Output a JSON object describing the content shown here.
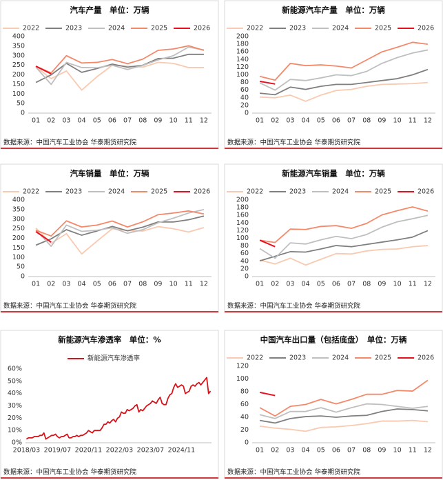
{
  "chart_data": [
    {
      "type": "line",
      "title": "汽车产量　单位：万辆",
      "source": "数据来源：中国汽车工业协会 华泰期货研究院",
      "categories": [
        "01",
        "02",
        "03",
        "04",
        "05",
        "06",
        "07",
        "08",
        "09",
        "10",
        "11",
        "12"
      ],
      "ylim": [
        0,
        400
      ],
      "yticks": [
        0,
        50,
        100,
        150,
        200,
        250,
        300,
        350,
        400
      ],
      "grid": false,
      "legend": "top",
      "series": [
        {
          "name": "2022",
          "color": "#f9c9b0",
          "values": [
            242,
            180,
            220,
            120,
            190,
            250,
            245,
            240,
            265,
            260,
            238,
            238
          ]
        },
        {
          "name": "2023",
          "color": "#7f7f7f",
          "values": [
            160,
            200,
            260,
            213,
            233,
            256,
            240,
            250,
            285,
            287,
            307,
            307
          ]
        },
        {
          "name": "2024",
          "color": "#bfbfbf",
          "values": [
            240,
            150,
            265,
            238,
            237,
            250,
            228,
            249,
            278,
            300,
            345,
            330
          ]
        },
        {
          "name": "2025",
          "color": "#f4896a",
          "values": [
            245,
            210,
            300,
            262,
            265,
            280,
            258,
            282,
            328,
            335,
            352,
            328
          ]
        },
        {
          "name": "2026",
          "color": "#e8101e",
          "values": [
            245,
            205,
            null,
            null,
            null,
            null,
            null,
            null,
            null,
            null,
            null,
            null
          ]
        }
      ]
    },
    {
      "type": "line",
      "title": "新能源汽车产量　单位：万辆",
      "source": "数据来源：中国汽车工业协会 华泰期货研究院",
      "categories": [
        "01",
        "02",
        "03",
        "04",
        "05",
        "06",
        "07",
        "08",
        "09",
        "10",
        "11",
        "12"
      ],
      "ylim": [
        0,
        200
      ],
      "yticks": [
        0,
        20,
        40,
        60,
        80,
        100,
        120,
        140,
        160,
        180,
        200
      ],
      "grid": false,
      "legend": "top",
      "series": [
        {
          "name": "2022",
          "color": "#f9c9b0",
          "values": [
            42,
            40,
            47,
            31,
            47,
            59,
            62,
            70,
            75,
            76,
            77,
            80
          ]
        },
        {
          "name": "2023",
          "color": "#7f7f7f",
          "values": [
            52,
            48,
            68,
            62,
            70,
            75,
            75,
            80,
            85,
            90,
            100,
            114
          ]
        },
        {
          "name": "2024",
          "color": "#bfbfbf",
          "values": [
            79,
            60,
            88,
            85,
            92,
            100,
            98,
            109,
            130,
            145,
            157,
            165
          ]
        },
        {
          "name": "2025",
          "color": "#f4896a",
          "values": [
            96,
            86,
            130,
            124,
            126,
            123,
            118,
            139,
            160,
            172,
            185,
            180
          ]
        },
        {
          "name": "2026",
          "color": "#e8101e",
          "values": [
            83,
            76,
            null,
            null,
            null,
            null,
            null,
            null,
            null,
            null,
            null,
            null
          ]
        }
      ]
    },
    {
      "type": "line",
      "title": "汽车销量　单位：万辆",
      "source": "数据来源：中国汽车工业协会 华泰期货研究院",
      "categories": [
        "01",
        "02",
        "03",
        "04",
        "05",
        "06",
        "07",
        "08",
        "09",
        "10",
        "11",
        "12"
      ],
      "ylim": [
        0,
        400
      ],
      "yticks": [
        0,
        50,
        100,
        150,
        200,
        250,
        300,
        350,
        400
      ],
      "grid": false,
      "legend": "top",
      "series": [
        {
          "name": "2022",
          "color": "#f9c9b0",
          "values": [
            253,
            174,
            224,
            118,
            185,
            250,
            240,
            238,
            261,
            250,
            233,
            256
          ]
        },
        {
          "name": "2023",
          "color": "#7f7f7f",
          "values": [
            164,
            197,
            245,
            216,
            238,
            262,
            239,
            258,
            285,
            285,
            297,
            316
          ]
        },
        {
          "name": "2024",
          "color": "#bfbfbf",
          "values": [
            244,
            158,
            269,
            236,
            242,
            255,
            226,
            245,
            281,
            305,
            332,
            350
          ]
        },
        {
          "name": "2025",
          "color": "#f4896a",
          "values": [
            242,
            212,
            291,
            259,
            269,
            290,
            259,
            286,
            323,
            332,
            343,
            327
          ]
        },
        {
          "name": "2026",
          "color": "#e8101e",
          "values": [
            235,
            180,
            null,
            null,
            null,
            null,
            null,
            null,
            null,
            null,
            null,
            null
          ]
        }
      ]
    },
    {
      "type": "line",
      "title": "新能源汽车销量　单位：万辆",
      "source": "数据来源：中国汽车工业协会 华泰期货研究院",
      "categories": [
        "01",
        "02",
        "03",
        "04",
        "05",
        "06",
        "07",
        "08",
        "09",
        "10",
        "11",
        "12"
      ],
      "ylim": [
        0,
        200
      ],
      "yticks": [
        0,
        20,
        40,
        60,
        80,
        100,
        120,
        140,
        160,
        180,
        200
      ],
      "grid": false,
      "legend": "top",
      "series": [
        {
          "name": "2022",
          "color": "#f9c9b0",
          "values": [
            43,
            33,
            48,
            30,
            45,
            60,
            59,
            67,
            71,
            72,
            78,
            81
          ]
        },
        {
          "name": "2023",
          "color": "#7f7f7f",
          "values": [
            41,
            53,
            65,
            64,
            72,
            81,
            78,
            84,
            90,
            96,
            103,
            120
          ]
        },
        {
          "name": "2024",
          "color": "#bfbfbf",
          "values": [
            73,
            48,
            88,
            85,
            96,
            105,
            99,
            110,
            129,
            143,
            151,
            160
          ]
        },
        {
          "name": "2025",
          "color": "#f4896a",
          "values": [
            95,
            89,
            124,
            123,
            131,
            133,
            126,
            139,
            161,
            172,
            182,
            171
          ]
        },
        {
          "name": "2026",
          "color": "#e8101e",
          "values": [
            95,
            78,
            null,
            null,
            null,
            null,
            null,
            null,
            null,
            null,
            null,
            null
          ]
        }
      ]
    },
    {
      "type": "line",
      "title": "新能源汽车渗透率　单位：%",
      "source": "数据来源：中国汽车工业协会 华泰期货研究院",
      "categories": [
        "2018/03",
        null,
        null,
        null,
        null,
        null,
        null,
        null,
        null,
        null,
        null,
        null,
        null,
        null,
        null,
        null,
        "2019/07",
        null,
        null,
        null,
        null,
        null,
        null,
        null,
        null,
        null,
        null,
        null,
        null,
        null,
        null,
        null,
        "2020/11",
        null,
        null,
        null,
        null,
        null,
        null,
        null,
        null,
        null,
        null,
        null,
        null,
        null,
        null,
        null,
        "2022/03",
        null,
        null,
        null,
        null,
        null,
        null,
        null,
        null,
        null,
        null,
        null,
        null,
        null,
        null,
        null,
        "2023/07",
        null,
        null,
        null,
        null,
        null,
        null,
        null,
        null,
        null,
        null,
        null,
        null,
        null,
        null,
        null,
        "2024/11",
        null,
        null,
        null,
        null,
        null,
        null,
        null,
        null,
        null,
        null,
        null,
        null,
        null,
        null,
        null
      ],
      "ylim": [
        0,
        60
      ],
      "yticks": [
        {
          "value": 0,
          "label": "0%"
        },
        {
          "value": 10,
          "label": "10%"
        },
        {
          "value": 20,
          "label": "20%"
        },
        {
          "value": 30,
          "label": "30%"
        },
        {
          "value": 40,
          "label": "40%"
        },
        {
          "value": 50,
          "label": "50%"
        },
        {
          "value": 60,
          "label": "60%"
        }
      ],
      "grid": false,
      "legend": "top",
      "series": [
        {
          "name": "新能源汽车渗透率",
          "color": "#d7141a",
          "values": [
            3,
            4,
            4,
            4,
            5,
            5,
            5,
            6,
            6,
            8,
            3,
            4,
            5,
            6,
            6,
            7,
            5,
            4,
            5,
            5,
            6,
            7,
            4,
            4,
            5,
            5,
            6,
            5,
            6,
            6,
            7,
            8,
            10,
            9,
            8,
            10,
            10,
            10,
            10,
            12,
            15,
            15,
            17,
            16,
            18,
            19,
            17,
            20,
            21,
            25,
            24,
            24,
            27,
            26,
            27,
            28,
            30,
            31,
            25,
            27,
            26,
            28,
            30,
            31,
            32,
            34,
            33,
            32,
            35,
            37,
            32,
            31,
            31,
            36,
            39,
            40,
            45,
            48,
            45,
            46,
            47,
            46,
            40,
            41,
            42,
            46,
            47,
            46,
            48,
            49,
            47,
            49,
            51,
            53,
            40,
            42
          ]
        }
      ]
    },
    {
      "type": "line",
      "title": "中国汽车出口量（包括底盘）　单位：万辆",
      "source": "数据来源：中国汽车工业协会 华泰期货研究院",
      "categories": [
        "01",
        "02",
        "03",
        "04",
        "05",
        "06",
        "07",
        "08",
        "09",
        "10",
        "11",
        "12"
      ],
      "ylim": [
        0,
        120
      ],
      "yticks": [
        0,
        20,
        40,
        60,
        80,
        100,
        120
      ],
      "grid": false,
      "legend": "top",
      "series": [
        {
          "name": "2022",
          "color": "#f9c9b0",
          "values": [
            26,
            23,
            21,
            18,
            24,
            25,
            27,
            30,
            34,
            34,
            35,
            33
          ]
        },
        {
          "name": "2023",
          "color": "#7f7f7f",
          "values": [
            35,
            31,
            38,
            41,
            42,
            40,
            42,
            43,
            49,
            53,
            52,
            50
          ]
        },
        {
          "name": "2024",
          "color": "#bfbfbf",
          "values": [
            44,
            38,
            49,
            49,
            55,
            48,
            55,
            61,
            60,
            57,
            54,
            57
          ]
        },
        {
          "name": "2025",
          "color": "#f4896a",
          "values": [
            55,
            42,
            57,
            60,
            68,
            61,
            68,
            76,
            76,
            82,
            81,
            98
          ]
        },
        {
          "name": "2026",
          "color": "#e8101e",
          "values": [
            79,
            74,
            null,
            null,
            null,
            null,
            null,
            null,
            null,
            null,
            null,
            null
          ]
        }
      ]
    }
  ]
}
